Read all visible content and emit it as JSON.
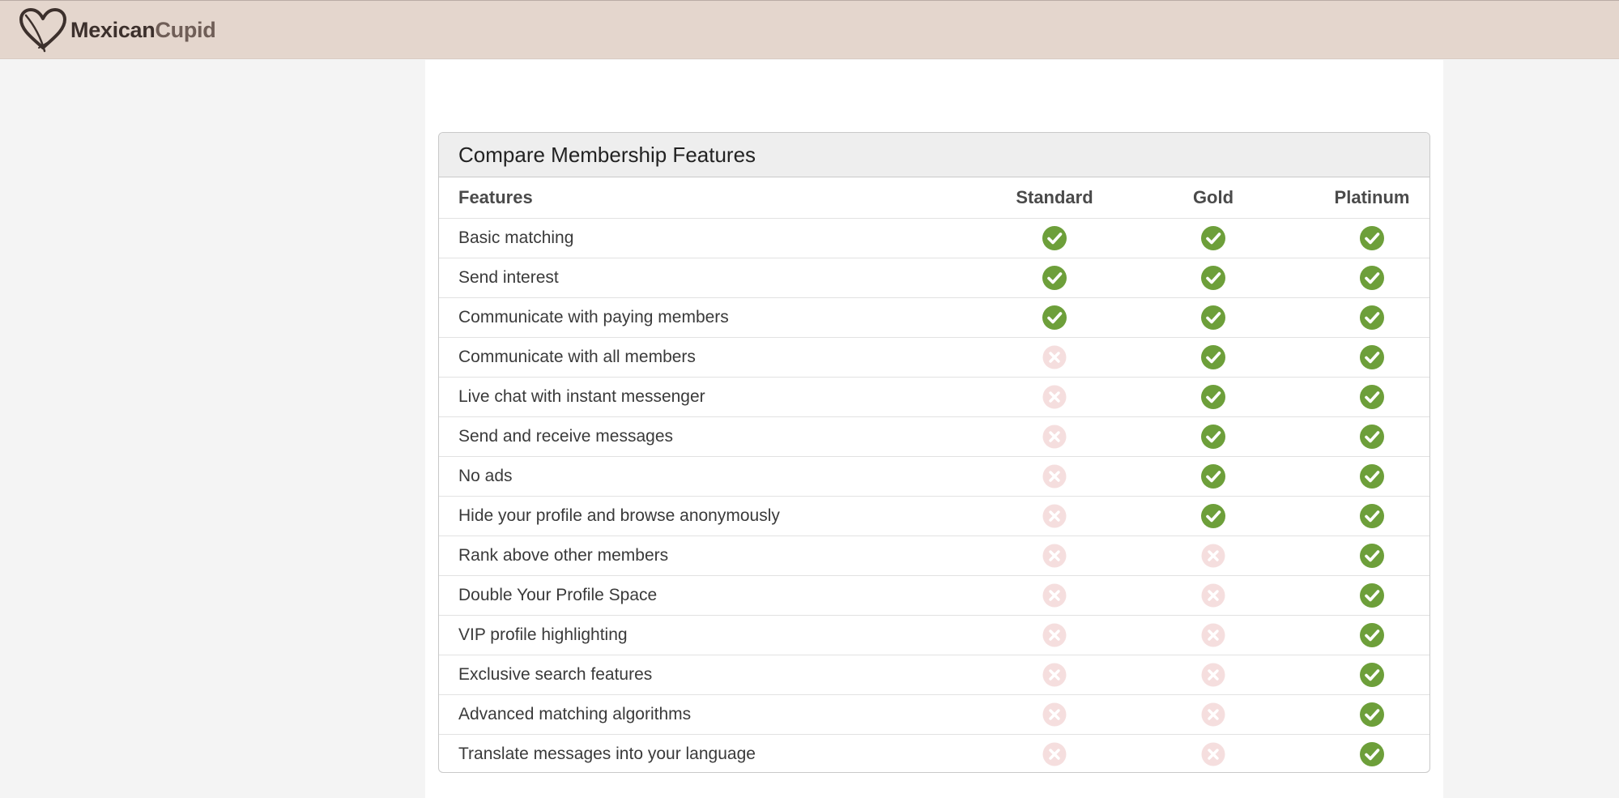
{
  "brand": {
    "name_part1": "Mexican",
    "name_part2": "Cupid",
    "heart_color": "#3c302c"
  },
  "colors": {
    "topbar": "#e4d6cd",
    "check_green": "#6d9f3a",
    "cross_pink": "#f5dede"
  },
  "compare": {
    "title": "Compare Membership Features",
    "columns": [
      "Features",
      "Standard",
      "Gold",
      "Platinum"
    ],
    "rows": [
      {
        "feature": "Basic matching",
        "standard": true,
        "gold": true,
        "platinum": true
      },
      {
        "feature": "Send interest",
        "standard": true,
        "gold": true,
        "platinum": true
      },
      {
        "feature": "Communicate with paying members",
        "standard": true,
        "gold": true,
        "platinum": true
      },
      {
        "feature": "Communicate with all members",
        "standard": false,
        "gold": true,
        "platinum": true
      },
      {
        "feature": "Live chat with instant messenger",
        "standard": false,
        "gold": true,
        "platinum": true
      },
      {
        "feature": "Send and receive messages",
        "standard": false,
        "gold": true,
        "platinum": true
      },
      {
        "feature": "No ads",
        "standard": false,
        "gold": true,
        "platinum": true
      },
      {
        "feature": "Hide your profile and browse anonymously",
        "standard": false,
        "gold": true,
        "platinum": true
      },
      {
        "feature": "Rank above other members",
        "standard": false,
        "gold": false,
        "platinum": true
      },
      {
        "feature": "Double Your Profile Space",
        "standard": false,
        "gold": false,
        "platinum": true
      },
      {
        "feature": "VIP profile highlighting",
        "standard": false,
        "gold": false,
        "platinum": true
      },
      {
        "feature": "Exclusive search features",
        "standard": false,
        "gold": false,
        "platinum": true
      },
      {
        "feature": "Advanced matching algorithms",
        "standard": false,
        "gold": false,
        "platinum": true
      },
      {
        "feature": "Translate messages into your language",
        "standard": false,
        "gold": false,
        "platinum": true
      }
    ]
  }
}
